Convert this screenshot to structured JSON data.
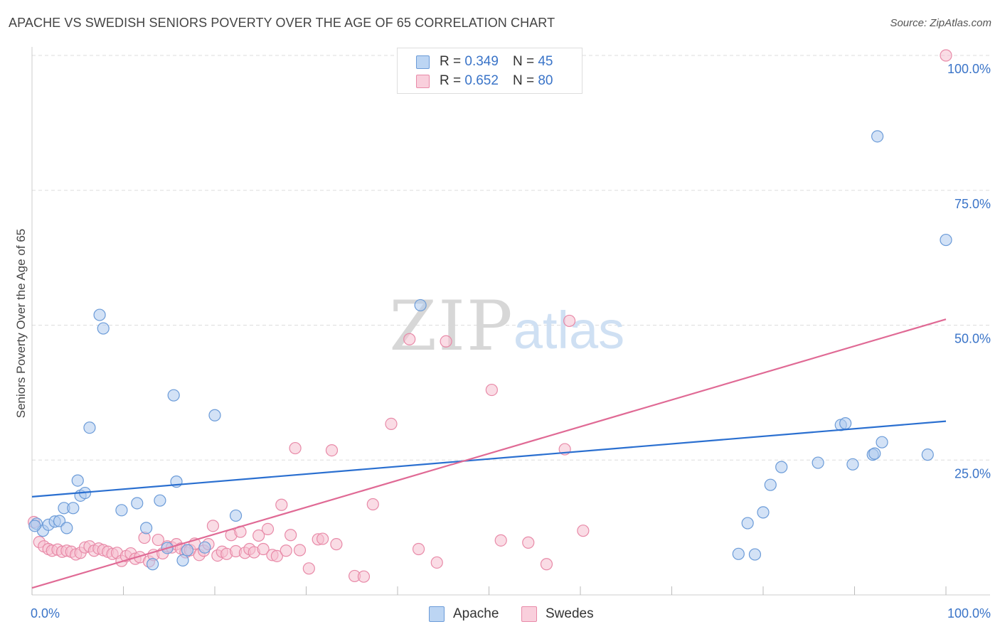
{
  "header": {
    "title": "APACHE VS SWEDISH SENIORS POVERTY OVER THE AGE OF 65 CORRELATION CHART",
    "source": "Source: ZipAtlas.com"
  },
  "watermark": {
    "zip": "ZIP",
    "atlas": "atlas"
  },
  "colors": {
    "apache_fill": "#aecbef",
    "apache_stroke": "#6b9bd8",
    "apache_line": "#2a6fd0",
    "swedes_fill": "#f6bfd0",
    "swedes_stroke": "#e88aa8",
    "swedes_line": "#e06a95",
    "axis_text": "#3a74c8",
    "grid": "#dddddd"
  },
  "legend": {
    "rows": [
      {
        "r_label": "R =",
        "r_value": "0.349",
        "n_label": "N =",
        "n_value": "45"
      },
      {
        "r_label": "R =",
        "r_value": "0.652",
        "n_label": "N =",
        "n_value": "80"
      }
    ],
    "bottom": [
      "Apache",
      "Swedes"
    ]
  },
  "chart_data": {
    "type": "scatter",
    "title": "APACHE VS SWEDISH SENIORS POVERTY OVER THE AGE OF 65 CORRELATION CHART",
    "xlabel": "",
    "ylabel": "Seniors Poverty Over the Age of 65",
    "xlim": [
      0,
      100
    ],
    "ylim": [
      0,
      100
    ],
    "x_tick_labels": [
      "0.0%",
      "100.0%"
    ],
    "y_tick_labels": [
      "25.0%",
      "50.0%",
      "75.0%",
      "100.0%"
    ],
    "y_ticks": [
      25,
      50,
      75,
      100
    ],
    "grid": true,
    "legend_position": "top-center",
    "series": [
      {
        "name": "Apache",
        "r": 0.349,
        "n": 45,
        "trend": {
          "x": [
            0,
            100
          ],
          "y": [
            18.2,
            32.2
          ]
        },
        "points": [
          [
            0.5,
            13.2
          ],
          [
            1.2,
            11.9
          ],
          [
            1.8,
            13.0
          ],
          [
            2.5,
            13.6
          ],
          [
            3.0,
            13.7
          ],
          [
            3.5,
            16.1
          ],
          [
            3.8,
            12.4
          ],
          [
            4.5,
            16.1
          ],
          [
            5.0,
            21.2
          ],
          [
            5.3,
            18.4
          ],
          [
            5.8,
            18.9
          ],
          [
            6.3,
            31.0
          ],
          [
            7.4,
            51.9
          ],
          [
            7.8,
            49.4
          ],
          [
            9.8,
            15.7
          ],
          [
            11.5,
            17.0
          ],
          [
            12.5,
            12.4
          ],
          [
            13.2,
            5.7
          ],
          [
            14.0,
            17.5
          ],
          [
            14.8,
            8.7
          ],
          [
            15.5,
            37.0
          ],
          [
            15.8,
            21.0
          ],
          [
            16.5,
            6.4
          ],
          [
            17.0,
            8.3
          ],
          [
            18.9,
            8.8
          ],
          [
            20.0,
            33.3
          ],
          [
            22.3,
            14.7
          ],
          [
            42.5,
            53.7
          ],
          [
            77.3,
            7.6
          ],
          [
            78.3,
            13.3
          ],
          [
            79.1,
            7.5
          ],
          [
            80.0,
            15.3
          ],
          [
            80.8,
            20.4
          ],
          [
            82.0,
            23.7
          ],
          [
            86.0,
            24.5
          ],
          [
            88.5,
            31.5
          ],
          [
            89.0,
            31.8
          ],
          [
            89.8,
            24.2
          ],
          [
            92.0,
            26.0
          ],
          [
            92.2,
            26.2
          ],
          [
            92.5,
            85.0
          ],
          [
            93.0,
            28.3
          ],
          [
            98.0,
            26.0
          ],
          [
            100.0,
            65.8
          ],
          [
            0.3,
            12.8
          ]
        ]
      },
      {
        "name": "Swedes",
        "r": 0.652,
        "n": 80,
        "trend": {
          "x": [
            0,
            100
          ],
          "y": [
            1.3,
            51.1
          ]
        },
        "points": [
          [
            0.2,
            13.5
          ],
          [
            0.8,
            9.8
          ],
          [
            1.3,
            9.0
          ],
          [
            1.8,
            8.5
          ],
          [
            2.2,
            8.2
          ],
          [
            2.8,
            8.4
          ],
          [
            3.3,
            8.0
          ],
          [
            3.8,
            8.2
          ],
          [
            4.3,
            8.0
          ],
          [
            4.8,
            7.5
          ],
          [
            5.3,
            7.8
          ],
          [
            5.8,
            8.8
          ],
          [
            6.3,
            9.0
          ],
          [
            6.8,
            8.2
          ],
          [
            7.3,
            8.6
          ],
          [
            7.8,
            8.3
          ],
          [
            8.3,
            8.0
          ],
          [
            8.8,
            7.6
          ],
          [
            9.3,
            7.8
          ],
          [
            9.8,
            6.3
          ],
          [
            10.3,
            7.2
          ],
          [
            10.8,
            7.7
          ],
          [
            11.3,
            6.7
          ],
          [
            11.8,
            7.0
          ],
          [
            12.3,
            10.6
          ],
          [
            12.8,
            6.2
          ],
          [
            13.3,
            7.4
          ],
          [
            13.8,
            10.2
          ],
          [
            14.3,
            7.7
          ],
          [
            14.8,
            9.0
          ],
          [
            15.3,
            8.8
          ],
          [
            15.8,
            9.4
          ],
          [
            16.3,
            8.6
          ],
          [
            16.8,
            7.9
          ],
          [
            17.3,
            8.3
          ],
          [
            17.8,
            9.5
          ],
          [
            18.3,
            7.4
          ],
          [
            18.8,
            8.2
          ],
          [
            19.3,
            9.4
          ],
          [
            19.8,
            12.8
          ],
          [
            20.3,
            7.3
          ],
          [
            20.8,
            8.0
          ],
          [
            21.3,
            7.6
          ],
          [
            21.8,
            11.1
          ],
          [
            22.3,
            8.1
          ],
          [
            22.8,
            11.7
          ],
          [
            23.3,
            7.8
          ],
          [
            23.8,
            8.5
          ],
          [
            24.3,
            7.9
          ],
          [
            24.8,
            11.0
          ],
          [
            25.3,
            8.5
          ],
          [
            25.8,
            12.2
          ],
          [
            26.3,
            7.4
          ],
          [
            26.8,
            7.2
          ],
          [
            27.3,
            16.7
          ],
          [
            27.8,
            8.2
          ],
          [
            28.3,
            11.1
          ],
          [
            28.8,
            27.2
          ],
          [
            29.3,
            8.3
          ],
          [
            30.3,
            4.9
          ],
          [
            31.3,
            10.3
          ],
          [
            31.8,
            10.4
          ],
          [
            32.8,
            26.8
          ],
          [
            33.3,
            9.4
          ],
          [
            35.3,
            3.5
          ],
          [
            36.3,
            3.4
          ],
          [
            37.3,
            16.8
          ],
          [
            39.3,
            31.7
          ],
          [
            41.3,
            47.4
          ],
          [
            42.3,
            8.5
          ],
          [
            45.3,
            47.0
          ],
          [
            44.3,
            6.0
          ],
          [
            50.3,
            38.0
          ],
          [
            51.3,
            10.1
          ],
          [
            54.3,
            9.7
          ],
          [
            56.3,
            5.7
          ],
          [
            58.3,
            27.0
          ],
          [
            58.8,
            50.8
          ],
          [
            60.3,
            11.9
          ],
          [
            100.0,
            100.0
          ]
        ]
      }
    ]
  }
}
